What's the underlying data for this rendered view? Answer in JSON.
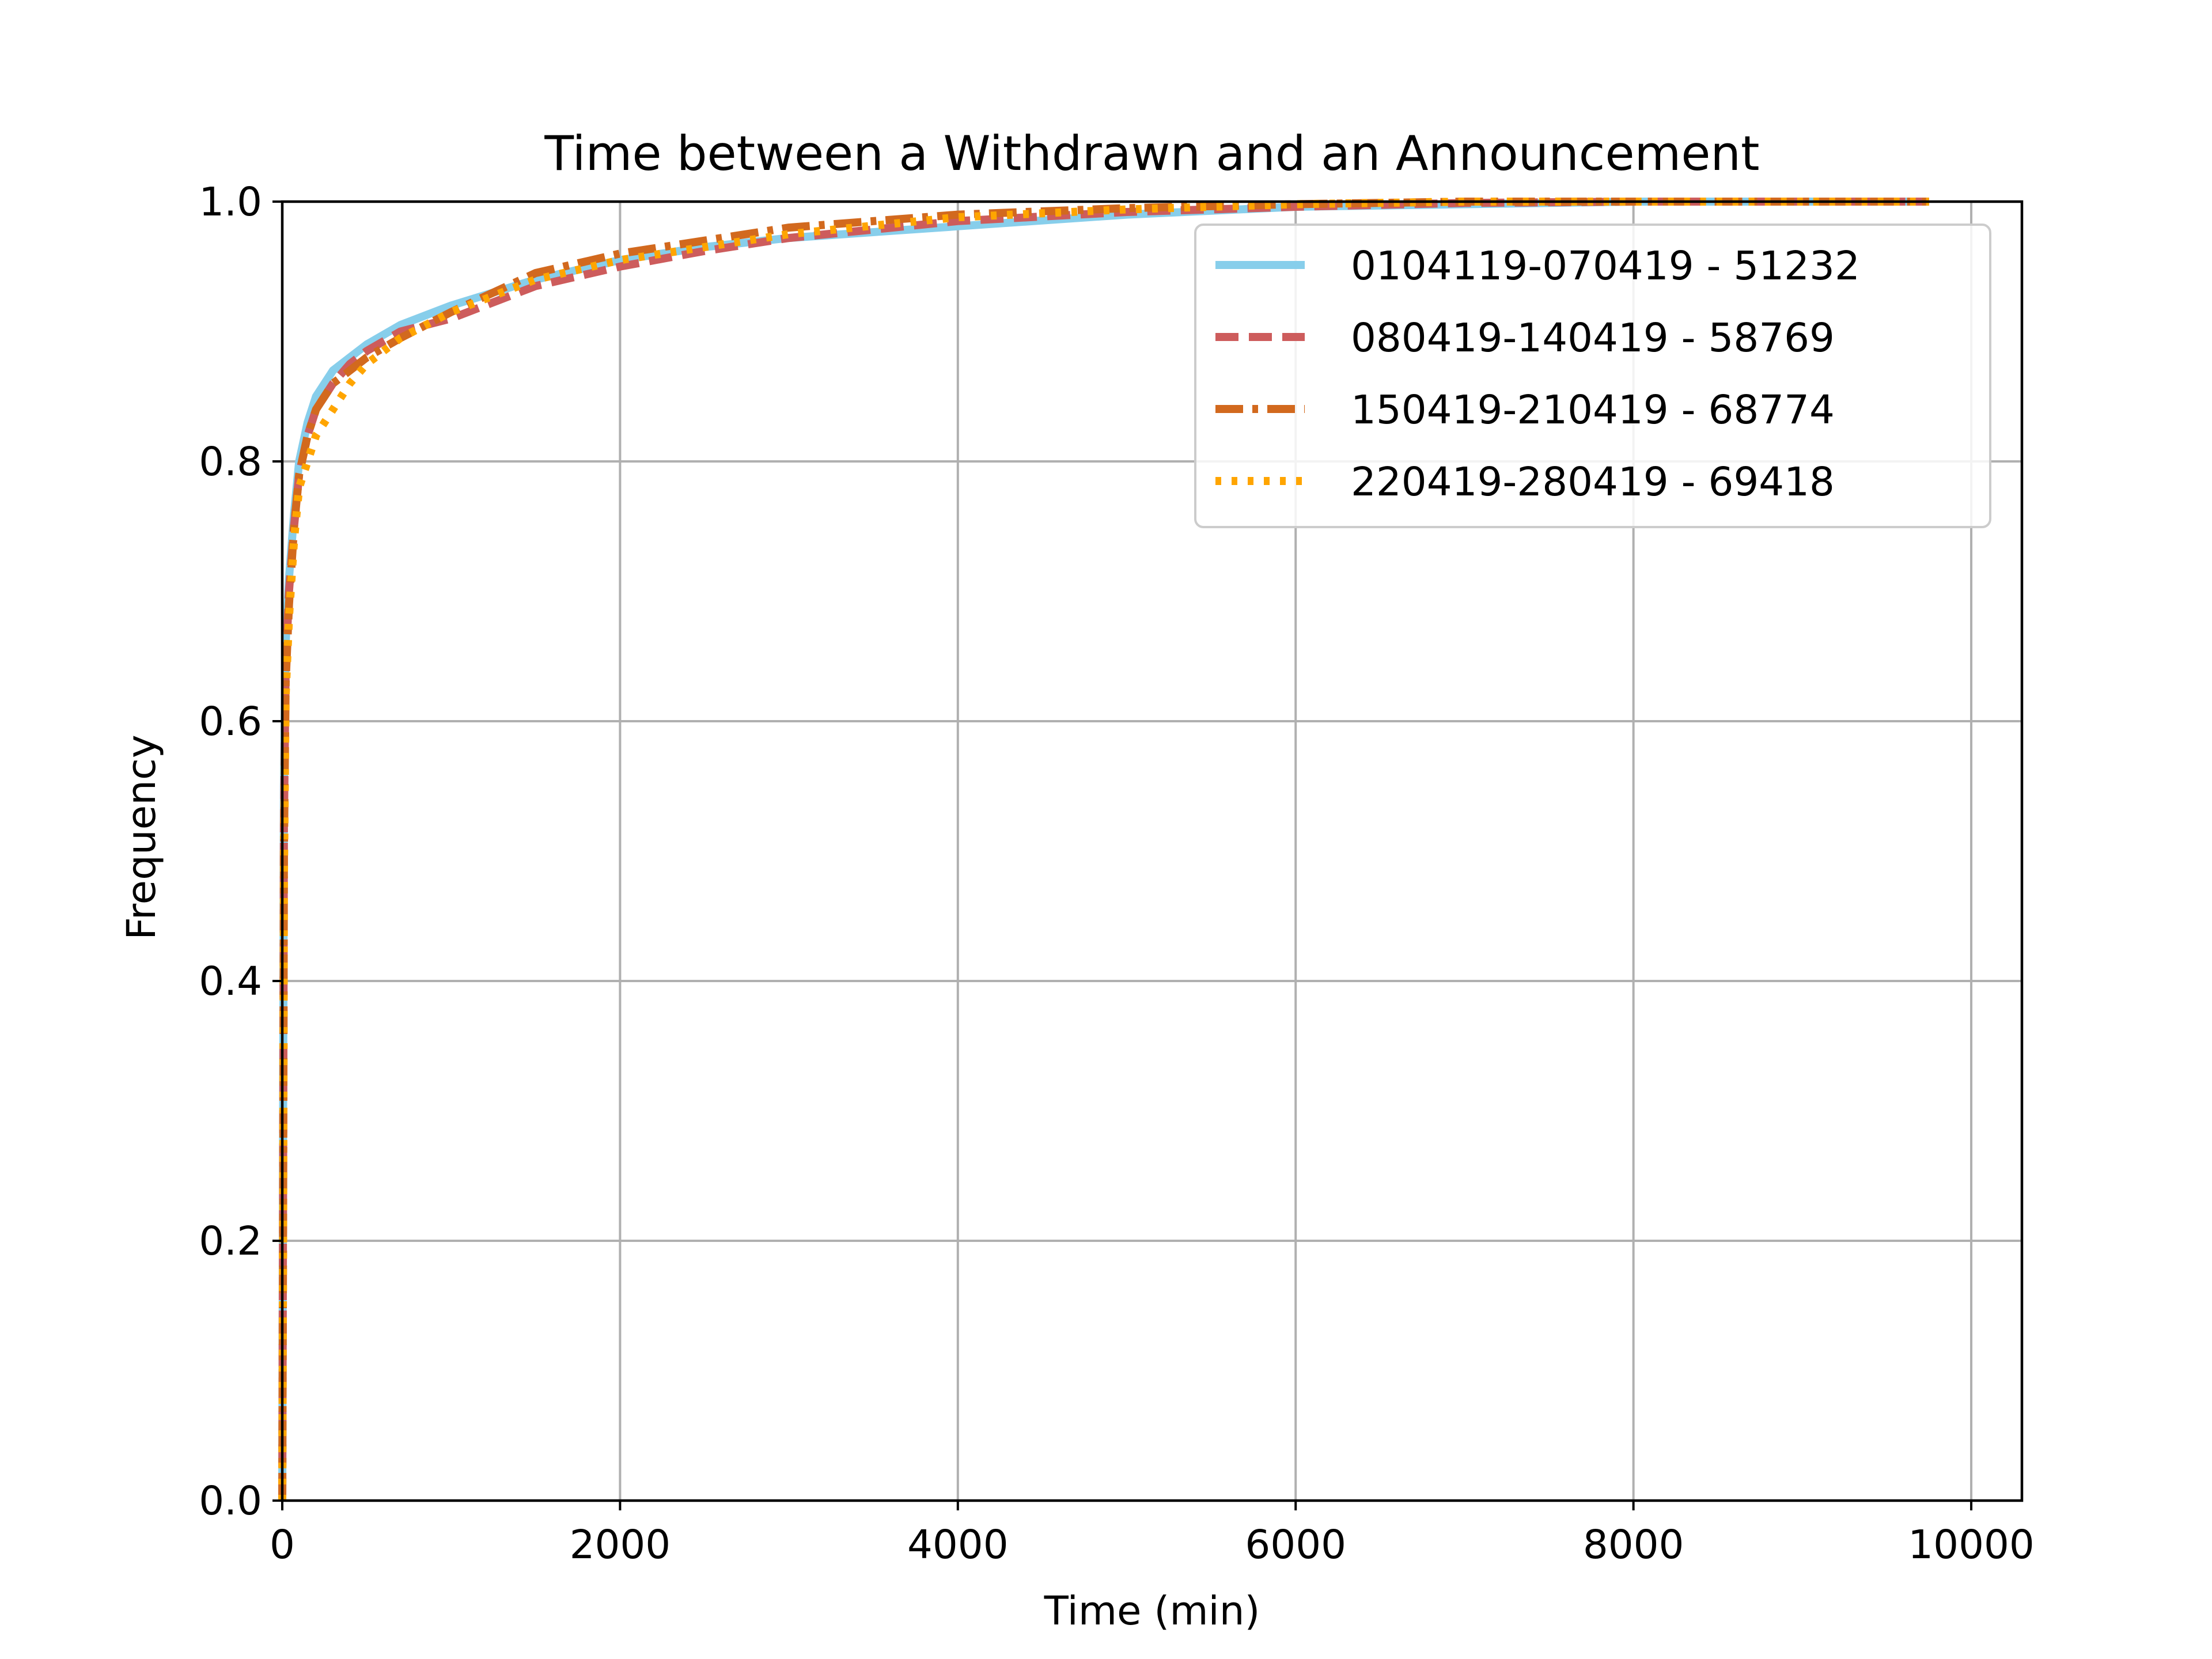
{
  "chart_data": {
    "type": "line",
    "title": "Time between a Withdrawn and an Announcement",
    "xlabel": "Time (min)",
    "ylabel": "Frequency",
    "xlim": [
      0,
      10300
    ],
    "ylim": [
      0,
      1.0
    ],
    "x_ticks": [
      0,
      2000,
      4000,
      6000,
      8000,
      10000
    ],
    "y_ticks": [
      0.0,
      0.2,
      0.4,
      0.6,
      0.8,
      1.0
    ],
    "x_tick_labels": [
      "0",
      "2000",
      "4000",
      "6000",
      "8000",
      "10000"
    ],
    "y_tick_labels": [
      "0.0",
      "0.2",
      "0.4",
      "0.6",
      "0.8",
      "1.0"
    ],
    "grid": true,
    "legend_position": "top-right",
    "series": [
      {
        "name": "0104119-070419 - 51232",
        "color": "#87ceeb",
        "style": "solid",
        "points": [
          [
            0,
            0
          ],
          [
            5,
            0.3
          ],
          [
            10,
            0.55
          ],
          [
            20,
            0.66
          ],
          [
            40,
            0.71
          ],
          [
            70,
            0.76
          ],
          [
            100,
            0.8
          ],
          [
            150,
            0.83
          ],
          [
            200,
            0.85
          ],
          [
            300,
            0.87
          ],
          [
            400,
            0.88
          ],
          [
            500,
            0.89
          ],
          [
            700,
            0.905
          ],
          [
            1000,
            0.92
          ],
          [
            1500,
            0.94
          ],
          [
            2000,
            0.955
          ],
          [
            2500,
            0.965
          ],
          [
            3000,
            0.972
          ],
          [
            4000,
            0.981
          ],
          [
            5000,
            0.99
          ],
          [
            6000,
            0.996
          ],
          [
            7000,
            0.998
          ],
          [
            8000,
            1.0
          ],
          [
            9000,
            1.0
          ],
          [
            9750,
            1.0
          ]
        ]
      },
      {
        "name": "080419-140419 - 58769",
        "color": "#cd5c5c",
        "style": "dashed",
        "points": [
          [
            0,
            0
          ],
          [
            5,
            0.25
          ],
          [
            10,
            0.52
          ],
          [
            20,
            0.64
          ],
          [
            40,
            0.7
          ],
          [
            70,
            0.75
          ],
          [
            100,
            0.79
          ],
          [
            150,
            0.82
          ],
          [
            200,
            0.84
          ],
          [
            300,
            0.86
          ],
          [
            400,
            0.875
          ],
          [
            500,
            0.885
          ],
          [
            700,
            0.9
          ],
          [
            1000,
            0.91
          ],
          [
            1500,
            0.935
          ],
          [
            2000,
            0.95
          ],
          [
            2500,
            0.962
          ],
          [
            3000,
            0.972
          ],
          [
            4000,
            0.985
          ],
          [
            5000,
            0.992
          ],
          [
            6000,
            0.996
          ],
          [
            7000,
            0.999
          ],
          [
            8000,
            1.0
          ],
          [
            9000,
            1.0
          ],
          [
            9750,
            1.0
          ]
        ]
      },
      {
        "name": "150419-210419 - 68774",
        "color": "#d2691e",
        "style": "dashdot",
        "points": [
          [
            0,
            0
          ],
          [
            5,
            0.22
          ],
          [
            10,
            0.5
          ],
          [
            20,
            0.63
          ],
          [
            40,
            0.69
          ],
          [
            70,
            0.75
          ],
          [
            100,
            0.79
          ],
          [
            150,
            0.82
          ],
          [
            200,
            0.84
          ],
          [
            300,
            0.86
          ],
          [
            400,
            0.87
          ],
          [
            500,
            0.88
          ],
          [
            700,
            0.895
          ],
          [
            1000,
            0.915
          ],
          [
            1500,
            0.945
          ],
          [
            2000,
            0.96
          ],
          [
            2500,
            0.97
          ],
          [
            3000,
            0.98
          ],
          [
            4000,
            0.99
          ],
          [
            5000,
            0.995
          ],
          [
            6000,
            0.998
          ],
          [
            7000,
            1.0
          ],
          [
            8000,
            1.0
          ],
          [
            9000,
            1.0
          ],
          [
            9750,
            1.0
          ]
        ]
      },
      {
        "name": "220419-280419 - 69418",
        "color": "#ffa500",
        "style": "dotted",
        "points": [
          [
            0,
            0
          ],
          [
            5,
            0.2
          ],
          [
            10,
            0.48
          ],
          [
            20,
            0.62
          ],
          [
            40,
            0.68
          ],
          [
            70,
            0.74
          ],
          [
            100,
            0.78
          ],
          [
            150,
            0.8
          ],
          [
            200,
            0.82
          ],
          [
            300,
            0.84
          ],
          [
            400,
            0.86
          ],
          [
            500,
            0.875
          ],
          [
            700,
            0.895
          ],
          [
            1000,
            0.915
          ],
          [
            1500,
            0.94
          ],
          [
            2000,
            0.955
          ],
          [
            2500,
            0.965
          ],
          [
            3000,
            0.975
          ],
          [
            4000,
            0.988
          ],
          [
            5000,
            0.994
          ],
          [
            6000,
            0.998
          ],
          [
            7000,
            1.0
          ],
          [
            8000,
            1.0
          ],
          [
            9000,
            1.0
          ],
          [
            9750,
            1.0
          ]
        ]
      }
    ]
  }
}
